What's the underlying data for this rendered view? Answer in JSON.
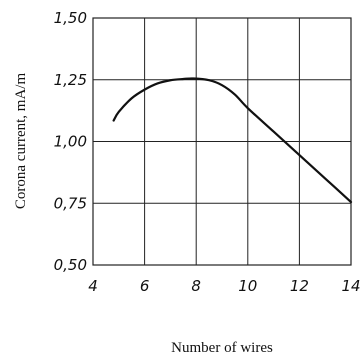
{
  "chart_data": {
    "type": "line",
    "xlabel": "Number of wires",
    "ylabel": "Corona current, mA/m",
    "xlim": [
      4,
      14
    ],
    "ylim": [
      0.5,
      1.5
    ],
    "x_ticks": [
      "4",
      "6",
      "8",
      "10",
      "12",
      "14"
    ],
    "y_ticks": [
      "0,50",
      "0,75",
      "1,00",
      "1,25",
      "1,50"
    ],
    "grid": true,
    "series": [
      {
        "x": [
          4.8,
          5.0,
          5.5,
          6.0,
          6.5,
          7.0,
          7.5,
          7.9,
          8.5,
          9.0,
          9.5,
          10.0,
          11.0,
          12.0,
          13.0,
          14.0
        ],
        "y": [
          1.085,
          1.12,
          1.175,
          1.21,
          1.235,
          1.248,
          1.253,
          1.255,
          1.248,
          1.228,
          1.19,
          1.135,
          1.04,
          0.945,
          0.85,
          0.755
        ]
      }
    ]
  }
}
